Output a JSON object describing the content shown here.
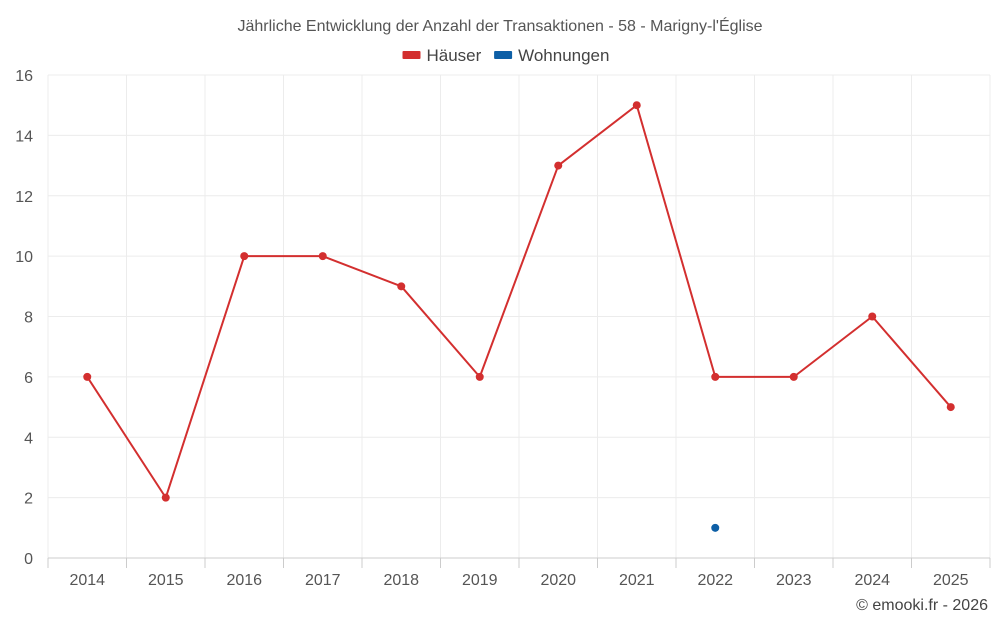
{
  "chart_data": {
    "type": "line",
    "title": "Jährliche Entwicklung der Anzahl der Transaktionen - 58 - Marigny-l'Église",
    "xlabel": "",
    "ylabel": "",
    "categories": [
      "2014",
      "2015",
      "2016",
      "2017",
      "2018",
      "2019",
      "2020",
      "2021",
      "2022",
      "2023",
      "2024",
      "2025"
    ],
    "ylim": [
      0,
      16
    ],
    "yticks": [
      0,
      2,
      4,
      6,
      8,
      10,
      12,
      14,
      16
    ],
    "grid": true,
    "legend_position": "top-center",
    "series": [
      {
        "name": "Häuser",
        "color": "#d32f2f",
        "values": [
          6,
          2,
          10,
          10,
          9,
          6,
          13,
          15,
          6,
          6,
          8,
          5
        ]
      },
      {
        "name": "Wohnungen",
        "color": "#0d5fa6",
        "values": [
          null,
          null,
          null,
          null,
          null,
          null,
          null,
          null,
          1,
          null,
          null,
          null
        ]
      }
    ]
  },
  "credit": "© emooki.fr - 2026"
}
